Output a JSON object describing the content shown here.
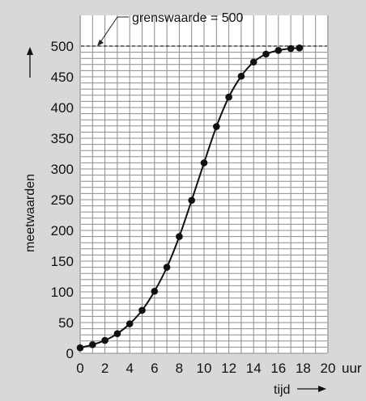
{
  "chart_data": {
    "type": "line",
    "xlabel": "tijd",
    "xunit": "uur",
    "ylabel": "meetwaarden",
    "xlim": [
      0,
      20
    ],
    "ylim": [
      0,
      500
    ],
    "xticks": [
      0,
      2,
      4,
      6,
      8,
      10,
      12,
      14,
      16,
      18,
      20
    ],
    "yticks": [
      0,
      50,
      100,
      150,
      200,
      250,
      300,
      350,
      400,
      450,
      500
    ],
    "grid": true,
    "limit": {
      "value": 500,
      "label": "grenswaarde = 500"
    },
    "series": [
      {
        "x": [
          0,
          1,
          2,
          3,
          4,
          5,
          6,
          7,
          8,
          9,
          10,
          11,
          12,
          13,
          14,
          15,
          16,
          17,
          17.7
        ],
        "y": [
          9,
          14,
          21,
          32,
          48,
          70,
          101,
          140,
          190,
          249,
          310,
          369,
          417,
          451,
          474,
          487,
          493,
          496,
          497
        ]
      }
    ]
  }
}
